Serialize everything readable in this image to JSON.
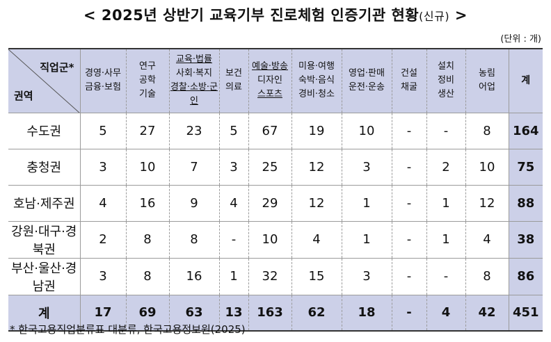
{
  "title": {
    "main": "< 2025년 상반기 교육기부 진로체험 인증기관 현황",
    "suffix": "(신규)",
    "close": " >"
  },
  "unit": "(단위 : 개)",
  "header": {
    "corner_top": "직업군*",
    "corner_bottom": "권역",
    "columns": [
      [
        "경영·사무",
        "금융·보험"
      ],
      [
        "연구",
        "공학",
        "기술"
      ],
      [
        "교육·법률",
        "사회·복지",
        "경찰·소방·군인"
      ],
      [
        "보건",
        "의료"
      ],
      [
        "예술·방송",
        "디자인",
        "스포츠"
      ],
      [
        "미용·여행",
        "숙박·음식",
        "경비·청소"
      ],
      [
        "영업·판매",
        "운전·운송"
      ],
      [
        "건설",
        "채굴"
      ],
      [
        "설치",
        "정비",
        "생산"
      ],
      [
        "농림",
        "어업"
      ]
    ],
    "total": "계"
  },
  "rows": [
    {
      "region": "수도권",
      "values": [
        "5",
        "27",
        "23",
        "5",
        "67",
        "19",
        "10",
        "-",
        "-",
        "8"
      ],
      "total": "164"
    },
    {
      "region": "충청권",
      "values": [
        "3",
        "10",
        "7",
        "3",
        "25",
        "12",
        "3",
        "-",
        "2",
        "10"
      ],
      "total": "75"
    },
    {
      "region": "호남·제주권",
      "values": [
        "4",
        "16",
        "9",
        "4",
        "29",
        "12",
        "1",
        "-",
        "1",
        "12"
      ],
      "total": "88"
    },
    {
      "region": "강원·대구·경북권",
      "values": [
        "2",
        "8",
        "8",
        "-",
        "10",
        "4",
        "1",
        "-",
        "1",
        "4"
      ],
      "total": "38"
    },
    {
      "region": "부산·울산·경남권",
      "values": [
        "3",
        "8",
        "16",
        "1",
        "32",
        "15",
        "3",
        "-",
        "-",
        "8"
      ],
      "total": "86"
    }
  ],
  "totals": {
    "label": "계",
    "values": [
      "17",
      "69",
      "63",
      "13",
      "163",
      "62",
      "18",
      "-",
      "4",
      "42"
    ],
    "total": "451"
  },
  "note": "* 한국고용직업분류표 대분류, 한국고용정보원(2025)"
}
